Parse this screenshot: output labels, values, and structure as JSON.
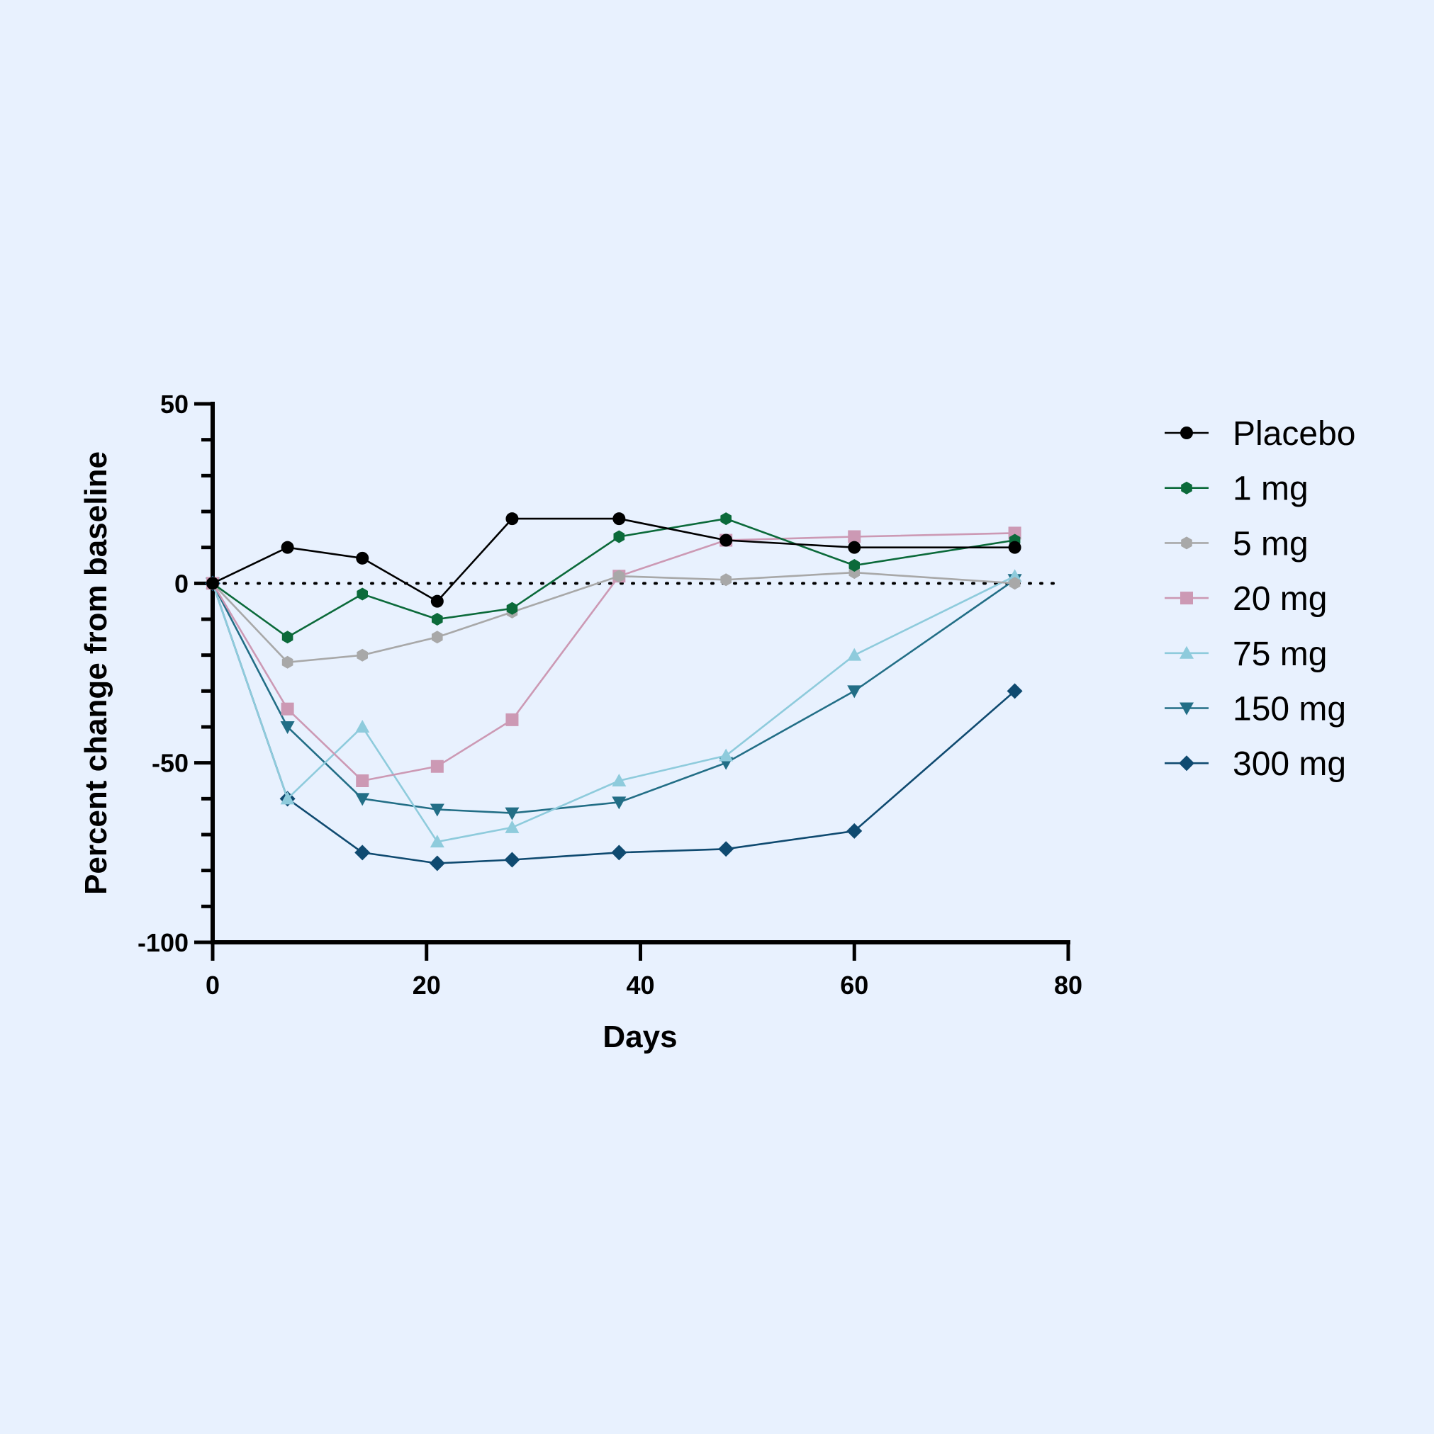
{
  "chart_data": {
    "type": "line",
    "title": "",
    "xlabel": "Days",
    "ylabel": "Percent change from baseline",
    "xlim": [
      0,
      80
    ],
    "ylim": [
      -100,
      50
    ],
    "x_ticks": [
      "0",
      "20",
      "40",
      "60",
      "80"
    ],
    "y_ticks": [
      "50",
      "0",
      "-50",
      "-100"
    ],
    "reference_line": 0,
    "legend_position": "right",
    "x": [
      0,
      7,
      14,
      21,
      28,
      38,
      48,
      60,
      75
    ],
    "series": [
      {
        "name": "Placebo",
        "color": "#000000",
        "marker": "circle",
        "values": [
          0,
          10,
          7,
          -5,
          18,
          18,
          12,
          10,
          10
        ]
      },
      {
        "name": "1 mg",
        "color": "#0b6a3a",
        "marker": "hexagon",
        "values": [
          0,
          -15,
          -3,
          -10,
          -7,
          13,
          18,
          5,
          12
        ]
      },
      {
        "name": "5 mg",
        "color": "#a8a8a8",
        "marker": "hexagon",
        "values": [
          0,
          -22,
          -20,
          -15,
          -8,
          2,
          1,
          3,
          0
        ]
      },
      {
        "name": "20 mg",
        "color": "#cc99b4",
        "marker": "square",
        "values": [
          0,
          -35,
          -55,
          -51,
          -38,
          2,
          12,
          13,
          14
        ]
      },
      {
        "name": "75 mg",
        "color": "#8ecbdc",
        "marker": "triangle-up",
        "values": [
          0,
          -60,
          -40,
          -72,
          -68,
          -55,
          -48,
          -20,
          2
        ]
      },
      {
        "name": "150 mg",
        "color": "#226e86",
        "marker": "triangle-down",
        "values": [
          0,
          -40,
          -60,
          -63,
          -64,
          -61,
          -50,
          -30,
          1
        ]
      },
      {
        "name": "300 mg",
        "color": "#0f4a70",
        "marker": "diamond",
        "values": [
          0,
          -60,
          -75,
          -78,
          -77,
          -75,
          -74,
          -69,
          -30
        ]
      }
    ]
  }
}
